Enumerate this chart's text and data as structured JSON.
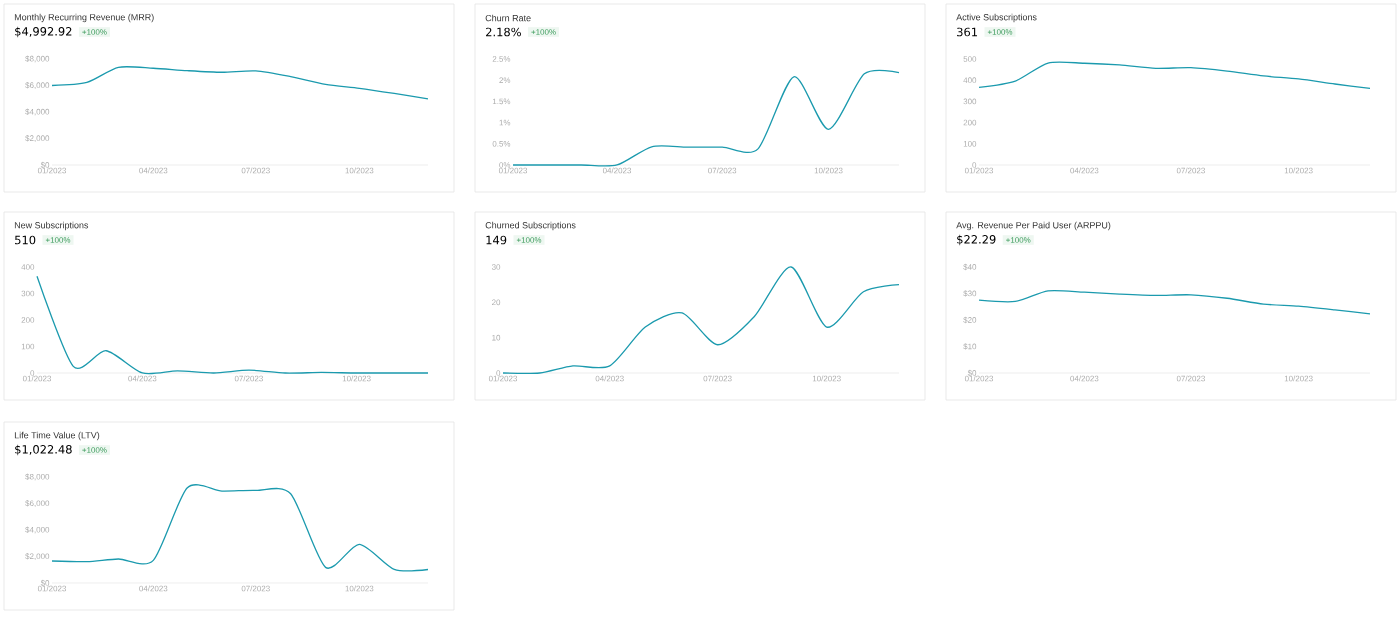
{
  "chart_data": [
    {
      "type": "line",
      "title": "Monthly Recurring Revenue (MRR)",
      "subtitle": "$4,992.92",
      "annotations": [
        "+100%"
      ],
      "color": "#1b9aae",
      "x": [
        "2023-01",
        "2023-02",
        "2023-03",
        "2023-04",
        "2023-05",
        "2023-06",
        "2023-07",
        "2023-08",
        "2023-09",
        "2023-10",
        "2023-11",
        "2023-12"
      ],
      "values": [
        6000,
        6230,
        7370,
        7300,
        7120,
        7000,
        7100,
        6670,
        6090,
        5790,
        5400,
        4990
      ],
      "xlim": [
        "2023-01",
        "2023-12"
      ],
      "xticks": [
        {
          "value": "2023-01",
          "label": "01/2023"
        },
        {
          "value": "2023-04",
          "label": "04/2023"
        },
        {
          "value": "2023-07",
          "label": "07/2023"
        },
        {
          "value": "2023-10",
          "label": "10/2023"
        }
      ],
      "ylim": [
        0,
        8000
      ],
      "yticks": [
        {
          "value": 0,
          "label": "$0"
        },
        {
          "value": 2000,
          "label": "$2,000"
        },
        {
          "value": 4000,
          "label": "$4,000"
        },
        {
          "value": 6000,
          "label": "$6,000"
        },
        {
          "value": 8000,
          "label": "$8,000"
        }
      ]
    },
    {
      "type": "line",
      "title": "Churn Rate",
      "subtitle": "2.18%",
      "annotations": [
        "+100%"
      ],
      "color": "#1b9aae",
      "x": [
        "2023-01",
        "2023-02",
        "2023-03",
        "2023-04",
        "2023-05",
        "2023-06",
        "2023-07",
        "2023-08",
        "2023-09",
        "2023-10",
        "2023-11",
        "2023-12"
      ],
      "values": [
        0,
        0,
        0,
        0,
        0.43,
        0.42,
        0.42,
        0.38,
        2.08,
        0.84,
        2.15,
        2.18
      ],
      "xlim": [
        "2023-01",
        "2023-12"
      ],
      "xticks": [
        {
          "value": "2023-01",
          "label": "01/2023"
        },
        {
          "value": "2023-04",
          "label": "04/2023"
        },
        {
          "value": "2023-07",
          "label": "07/2023"
        },
        {
          "value": "2023-10",
          "label": "10/2023"
        }
      ],
      "ylim": [
        0,
        2.5
      ],
      "yticks": [
        {
          "value": 0,
          "label": "0%"
        },
        {
          "value": 0.5,
          "label": "0.5%"
        },
        {
          "value": 1,
          "label": "1%"
        },
        {
          "value": 1.5,
          "label": "1.5%"
        },
        {
          "value": 2,
          "label": "2%"
        },
        {
          "value": 2.5,
          "label": "2.5%"
        }
      ]
    },
    {
      "type": "line",
      "title": "Active Subscriptions",
      "subtitle": "361",
      "annotations": [
        "+100%"
      ],
      "color": "#1b9aae",
      "x": [
        "2023-01",
        "2023-02",
        "2023-03",
        "2023-04",
        "2023-05",
        "2023-06",
        "2023-07",
        "2023-08",
        "2023-09",
        "2023-10",
        "2023-11",
        "2023-12"
      ],
      "values": [
        366,
        396,
        481,
        480,
        472,
        456,
        459,
        443,
        420,
        406,
        382,
        361
      ],
      "xlim": [
        "2023-01",
        "2023-12"
      ],
      "xticks": [
        {
          "value": "2023-01",
          "label": "01/2023"
        },
        {
          "value": "2023-04",
          "label": "04/2023"
        },
        {
          "value": "2023-07",
          "label": "07/2023"
        },
        {
          "value": "2023-10",
          "label": "10/2023"
        }
      ],
      "ylim": [
        0,
        500
      ],
      "yticks": [
        0,
        100,
        200,
        300,
        400,
        500
      ]
    },
    {
      "type": "line",
      "title": "New Subscriptions",
      "subtitle": "510",
      "annotations": [
        "+100%"
      ],
      "color": "#1b9aae",
      "x": [
        "2023-01",
        "2023-02",
        "2023-03",
        "2023-04",
        "2023-05",
        "2023-06",
        "2023-07",
        "2023-08",
        "2023-09",
        "2023-10",
        "2023-11",
        "2023-12"
      ],
      "values": [
        365,
        25,
        84,
        0,
        8,
        0,
        11,
        0,
        2,
        0,
        0,
        0
      ],
      "xlim": [
        "2023-01",
        "2023-12"
      ],
      "xticks": [
        {
          "value": "2023-01",
          "label": "01/2023"
        },
        {
          "value": "2023-04",
          "label": "04/2023"
        },
        {
          "value": "2023-07",
          "label": "07/2023"
        },
        {
          "value": "2023-10",
          "label": "10/2023"
        }
      ],
      "ylim": [
        0,
        400
      ],
      "yticks": [
        0,
        100,
        200,
        300,
        400
      ]
    },
    {
      "type": "line",
      "title": "Churned Subscriptions",
      "subtitle": "149",
      "annotations": [
        "+100%"
      ],
      "color": "#1b9aae",
      "x": [
        "2023-01",
        "2023-02",
        "2023-03",
        "2023-04",
        "2023-05",
        "2023-06",
        "2023-07",
        "2023-08",
        "2023-09",
        "2023-10",
        "2023-11",
        "2023-12"
      ],
      "values": [
        0,
        0,
        2,
        2,
        13,
        17,
        8,
        16,
        30,
        13,
        23,
        25
      ],
      "xlim": [
        "2023-01",
        "2023-12"
      ],
      "xticks": [
        {
          "value": "2023-01",
          "label": "01/2023"
        },
        {
          "value": "2023-04",
          "label": "04/2023"
        },
        {
          "value": "2023-07",
          "label": "07/2023"
        },
        {
          "value": "2023-10",
          "label": "10/2023"
        }
      ],
      "ylim": [
        0,
        30
      ],
      "yticks": [
        0,
        10,
        20,
        30
      ]
    },
    {
      "type": "line",
      "title": "Avg. Revenue Per Paid User (ARPPU)",
      "subtitle": "$22.29",
      "annotations": [
        "+100%"
      ],
      "color": "#1b9aae",
      "x": [
        "2023-01",
        "2023-02",
        "2023-03",
        "2023-04",
        "2023-05",
        "2023-06",
        "2023-07",
        "2023-08",
        "2023-09",
        "2023-10",
        "2023-11",
        "2023-12"
      ],
      "values": [
        27.5,
        27,
        31,
        30.5,
        29.8,
        29.3,
        29.5,
        28.2,
        26,
        25.2,
        23.8,
        22.3
      ],
      "xlim": [
        "2023-01",
        "2023-12"
      ],
      "xticks": [
        {
          "value": "2023-01",
          "label": "01/2023"
        },
        {
          "value": "2023-04",
          "label": "04/2023"
        },
        {
          "value": "2023-07",
          "label": "07/2023"
        },
        {
          "value": "2023-10",
          "label": "10/2023"
        }
      ],
      "ylim": [
        0,
        40
      ],
      "yticks": [
        {
          "value": 0,
          "label": "$0"
        },
        {
          "value": 10,
          "label": "$10"
        },
        {
          "value": 20,
          "label": "$20"
        },
        {
          "value": 30,
          "label": "$30"
        },
        {
          "value": 40,
          "label": "$40"
        }
      ]
    },
    {
      "type": "line",
      "title": "Life Time Value (LTV)",
      "subtitle": "$1,022.48",
      "annotations": [
        "+100%"
      ],
      "color": "#1b9aae",
      "x": [
        "2023-01",
        "2023-02",
        "2023-03",
        "2023-04",
        "2023-05",
        "2023-06",
        "2023-07",
        "2023-08",
        "2023-09",
        "2023-10",
        "2023-11",
        "2023-12"
      ],
      "values": [
        1660,
        1610,
        1810,
        1710,
        7170,
        6940,
        6990,
        6740,
        1180,
        2920,
        1030,
        1020
      ],
      "xlim": [
        "2023-01",
        "2023-12"
      ],
      "xticks": [
        {
          "value": "2023-01",
          "label": "01/2023"
        },
        {
          "value": "2023-04",
          "label": "04/2023"
        },
        {
          "value": "2023-07",
          "label": "07/2023"
        },
        {
          "value": "2023-10",
          "label": "10/2023"
        }
      ],
      "ylim": [
        0,
        8000
      ],
      "yticks": [
        {
          "value": 0,
          "label": "$0"
        },
        {
          "value": 2000,
          "label": "$2,000"
        },
        {
          "value": 4000,
          "label": "$4,000"
        },
        {
          "value": 6000,
          "label": "$6,000"
        },
        {
          "value": 8000,
          "label": "$8,000"
        }
      ]
    }
  ]
}
